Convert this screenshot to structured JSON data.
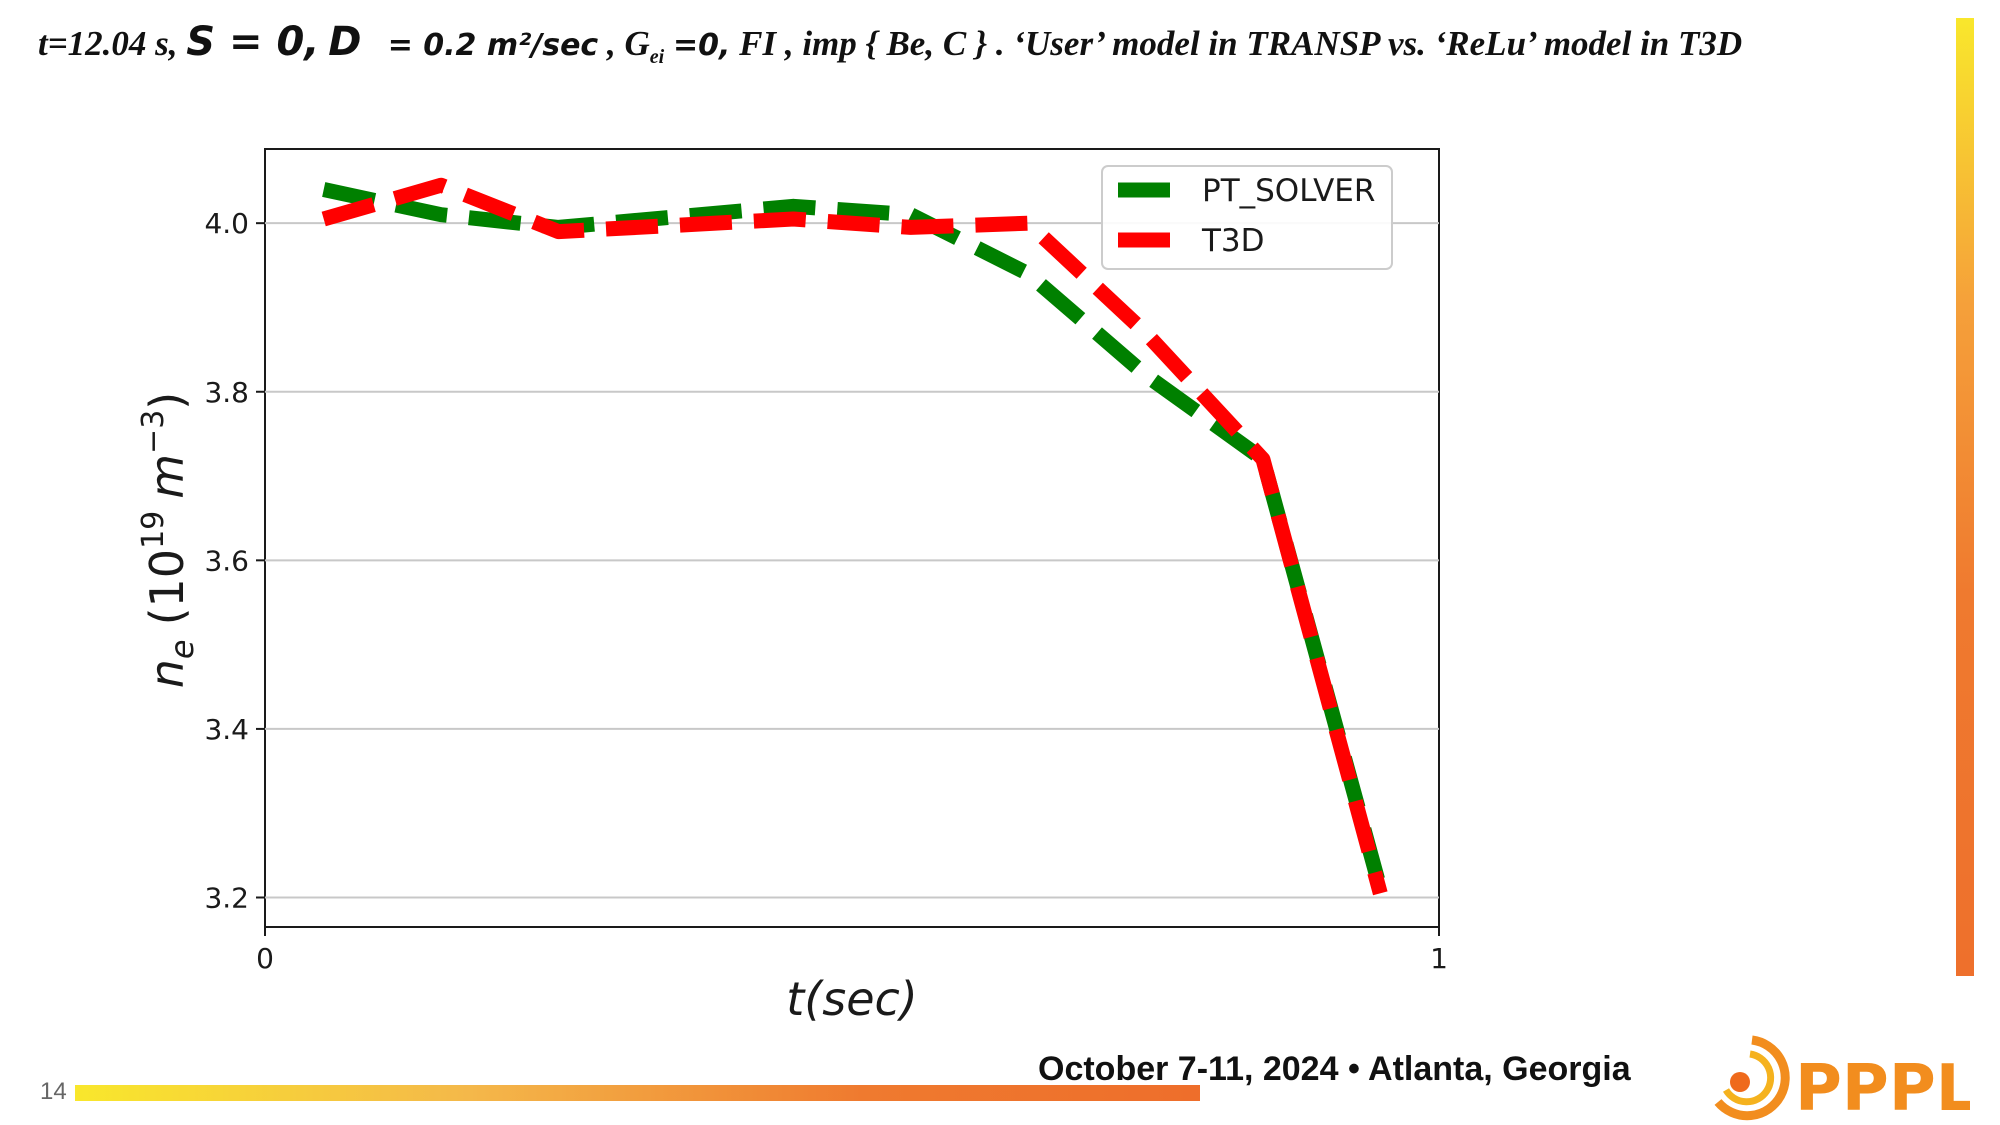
{
  "slide": {
    "title": {
      "time_part": "t=12.04 s,",
      "s_part": "S = 0,",
      "d_symbol": "D",
      "d_value": "= 0.2 m²/sec",
      "g_symbol": ", G",
      "g_sub": "ei",
      "g_value": "=0,",
      "rest": " FI , imp { Be, C } . ‘User’ model in TRANSP vs. ‘ReLu’ model in T3D"
    },
    "slide_number": "14",
    "footer": "October 7-11, 2024 • Atlanta, Georgia",
    "logo_text": "PPPL",
    "colors": {
      "accent": "#ef7a2f",
      "accent_yellow": "#f9e72c"
    }
  },
  "chart_data": {
    "type": "line",
    "title": "",
    "xlabel": "t(sec)",
    "ylabel_main": "n",
    "ylabel_sub": "e",
    "ylabel_unit": "(10",
    "ylabel_exp": "19",
    "ylabel_m": "m",
    "ylabel_mexp": "−3",
    "ylabel_close": ")",
    "xlim": [
      0,
      1
    ],
    "ylim": [
      3.165,
      4.088
    ],
    "xticks": [
      0,
      1
    ],
    "xtick_labels": [
      "0",
      "1"
    ],
    "yticks": [
      3.2,
      3.4,
      3.6,
      3.8,
      4.0
    ],
    "ytick_labels": [
      "3.2",
      "3.4",
      "3.6",
      "3.8",
      "4.0"
    ],
    "grid": "horizontal",
    "legend_position": "top-right",
    "series": [
      {
        "name": "PT_SOLVER",
        "color": "#008000",
        "x": [
          0.05,
          0.15,
          0.25,
          0.45,
          0.55,
          0.65,
          0.75,
          0.85,
          0.95
        ],
        "y": [
          4.04,
          4.01,
          3.995,
          4.02,
          4.01,
          3.94,
          3.82,
          3.72,
          3.21
        ]
      },
      {
        "name": "T3D",
        "color": "#ff0000",
        "x": [
          0.05,
          0.15,
          0.25,
          0.45,
          0.55,
          0.65,
          0.75,
          0.85,
          0.95
        ],
        "y": [
          4.005,
          4.045,
          3.99,
          4.005,
          3.995,
          4.0,
          3.87,
          3.72,
          3.205
        ]
      }
    ]
  }
}
